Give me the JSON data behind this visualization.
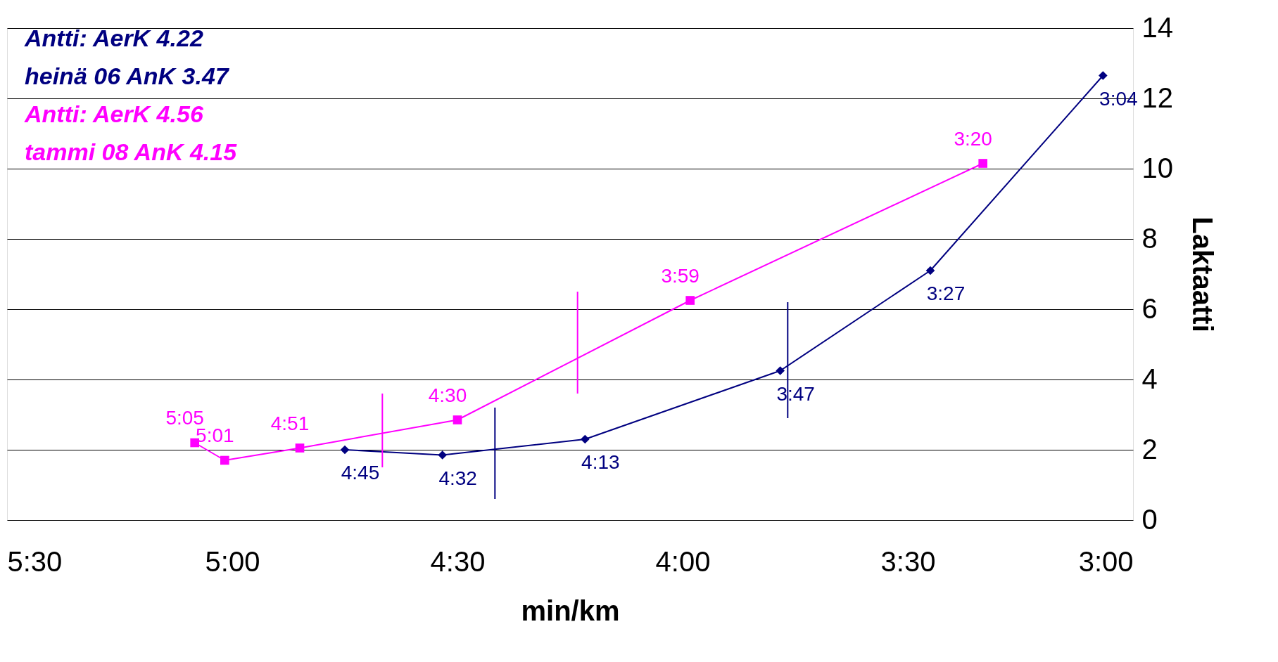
{
  "chart_data": {
    "type": "line",
    "xlabel": "min/km",
    "ylabel": "Laktaatti",
    "xlim": [
      5.5,
      3.0
    ],
    "xticks": [
      {
        "value": 5.5,
        "label": "5:30"
      },
      {
        "value": 5.0,
        "label": "5:00"
      },
      {
        "value": 4.5,
        "label": "4:30"
      },
      {
        "value": 4.0,
        "label": "4:00"
      },
      {
        "value": 3.5,
        "label": "3:30"
      },
      {
        "value": 3.0,
        "label": "3:00"
      }
    ],
    "ylim": [
      0,
      14
    ],
    "yticks": [
      0,
      2,
      4,
      6,
      8,
      10,
      12,
      14
    ],
    "grid": "y",
    "annotations": [
      "Antti:        AerK 4.22",
      "heinä 06     AnK  3.47",
      "Antti:        AerK 4.56",
      "tammi 08    AnK  4.15",
      {
        "text": "4:45",
        "x": 4.75,
        "y": 2.0
      },
      {
        "text": "4:32",
        "x": 4.5333,
        "y": 1.85
      },
      {
        "text": "4:13",
        "x": 4.2167,
        "y": 2.3
      },
      {
        "text": "3:47",
        "x": 3.7833,
        "y": 4.25
      },
      {
        "text": "3:27",
        "x": 3.45,
        "y": 7.1
      },
      {
        "text": "3:04",
        "x": 3.0667,
        "y": 12.65
      },
      {
        "text": "5:05",
        "x": 5.0833,
        "y": 2.2
      },
      {
        "text": "5:01",
        "x": 5.0167,
        "y": 1.7
      },
      {
        "text": "4:51",
        "x": 4.85,
        "y": 2.05
      },
      {
        "text": "4:30",
        "x": 4.5,
        "y": 2.85
      },
      {
        "text": "3:59",
        "x": 3.9833,
        "y": 6.25
      },
      {
        "text": "3:20",
        "x": 3.3333,
        "y": 10.15
      }
    ],
    "series": [
      {
        "color": "#000080",
        "marker": "diamond",
        "x": [
          4.75,
          4.5333,
          4.2167,
          3.7833,
          3.45,
          3.0667
        ],
        "values": [
          2.0,
          1.85,
          2.3,
          4.25,
          7.1,
          12.65
        ]
      },
      {
        "color": "#ff00ff",
        "marker": "square",
        "x": [
          5.0833,
          5.0167,
          4.85,
          4.5,
          3.9833,
          3.3333
        ],
        "values": [
          2.2,
          1.7,
          2.05,
          2.85,
          6.25,
          10.15
        ]
      },
      {
        "color": "#ff00ff",
        "marker": "none",
        "x": [
          4.6667,
          4.6667
        ],
        "values": [
          1.5,
          3.6
        ]
      },
      {
        "color": "#ff00ff",
        "marker": "none",
        "x": [
          4.2333,
          4.2333
        ],
        "values": [
          3.6,
          6.5
        ]
      },
      {
        "color": "#000080",
        "marker": "none",
        "x": [
          4.4167,
          4.4167
        ],
        "values": [
          0.6,
          3.2
        ]
      },
      {
        "color": "#000080",
        "marker": "none",
        "x": [
          3.7667,
          3.7667
        ],
        "values": [
          2.9,
          6.2
        ]
      }
    ]
  }
}
